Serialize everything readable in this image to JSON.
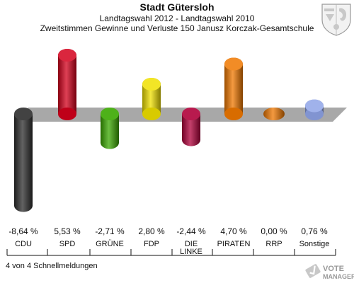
{
  "header": {
    "title": "Stadt Gütersloh",
    "subtitle1": "Landtagswahl 2012 - Landtagswahl 2010",
    "subtitle2": "Zweitstimmen Gewinne und Verluste 150 Janusz Korczak-Gesamtschule"
  },
  "footer": {
    "note": "4 von 4 Schnellmeldungen",
    "logo_line1": "VOTE",
    "logo_line2": "MANAGER"
  },
  "icons": {
    "crest": "coat-of-arms-icon"
  },
  "chart_data": {
    "type": "bar",
    "categories": [
      "CDU",
      "SPD",
      "GRÜNE",
      "FDP",
      "DIE LINKE",
      "PIRATEN",
      "RRP",
      "Sonstige"
    ],
    "category_lines": [
      [
        "CDU"
      ],
      [
        "SPD"
      ],
      [
        "GRÜNE"
      ],
      [
        "FDP"
      ],
      [
        "DIE",
        "LINKE"
      ],
      [
        "PIRATEN"
      ],
      [
        "RRP"
      ],
      [
        "Sonstige"
      ]
    ],
    "values": [
      -8.64,
      5.53,
      -2.71,
      2.8,
      -2.44,
      4.7,
      0.0,
      0.76
    ],
    "value_labels": [
      "-8,64 %",
      "5,53 %",
      "-2,71 %",
      "2,80 %",
      "-2,44 %",
      "4,70 %",
      "0,00 %",
      "0,76 %"
    ],
    "colors": [
      "#2d2d2d",
      "#d4001c",
      "#3aa800",
      "#f0e000",
      "#b0003a",
      "#f07800",
      "#f07800",
      "#8fa4e8"
    ],
    "ylim": [
      -9,
      6
    ],
    "baseline_band_color": "#a8a8a8"
  }
}
